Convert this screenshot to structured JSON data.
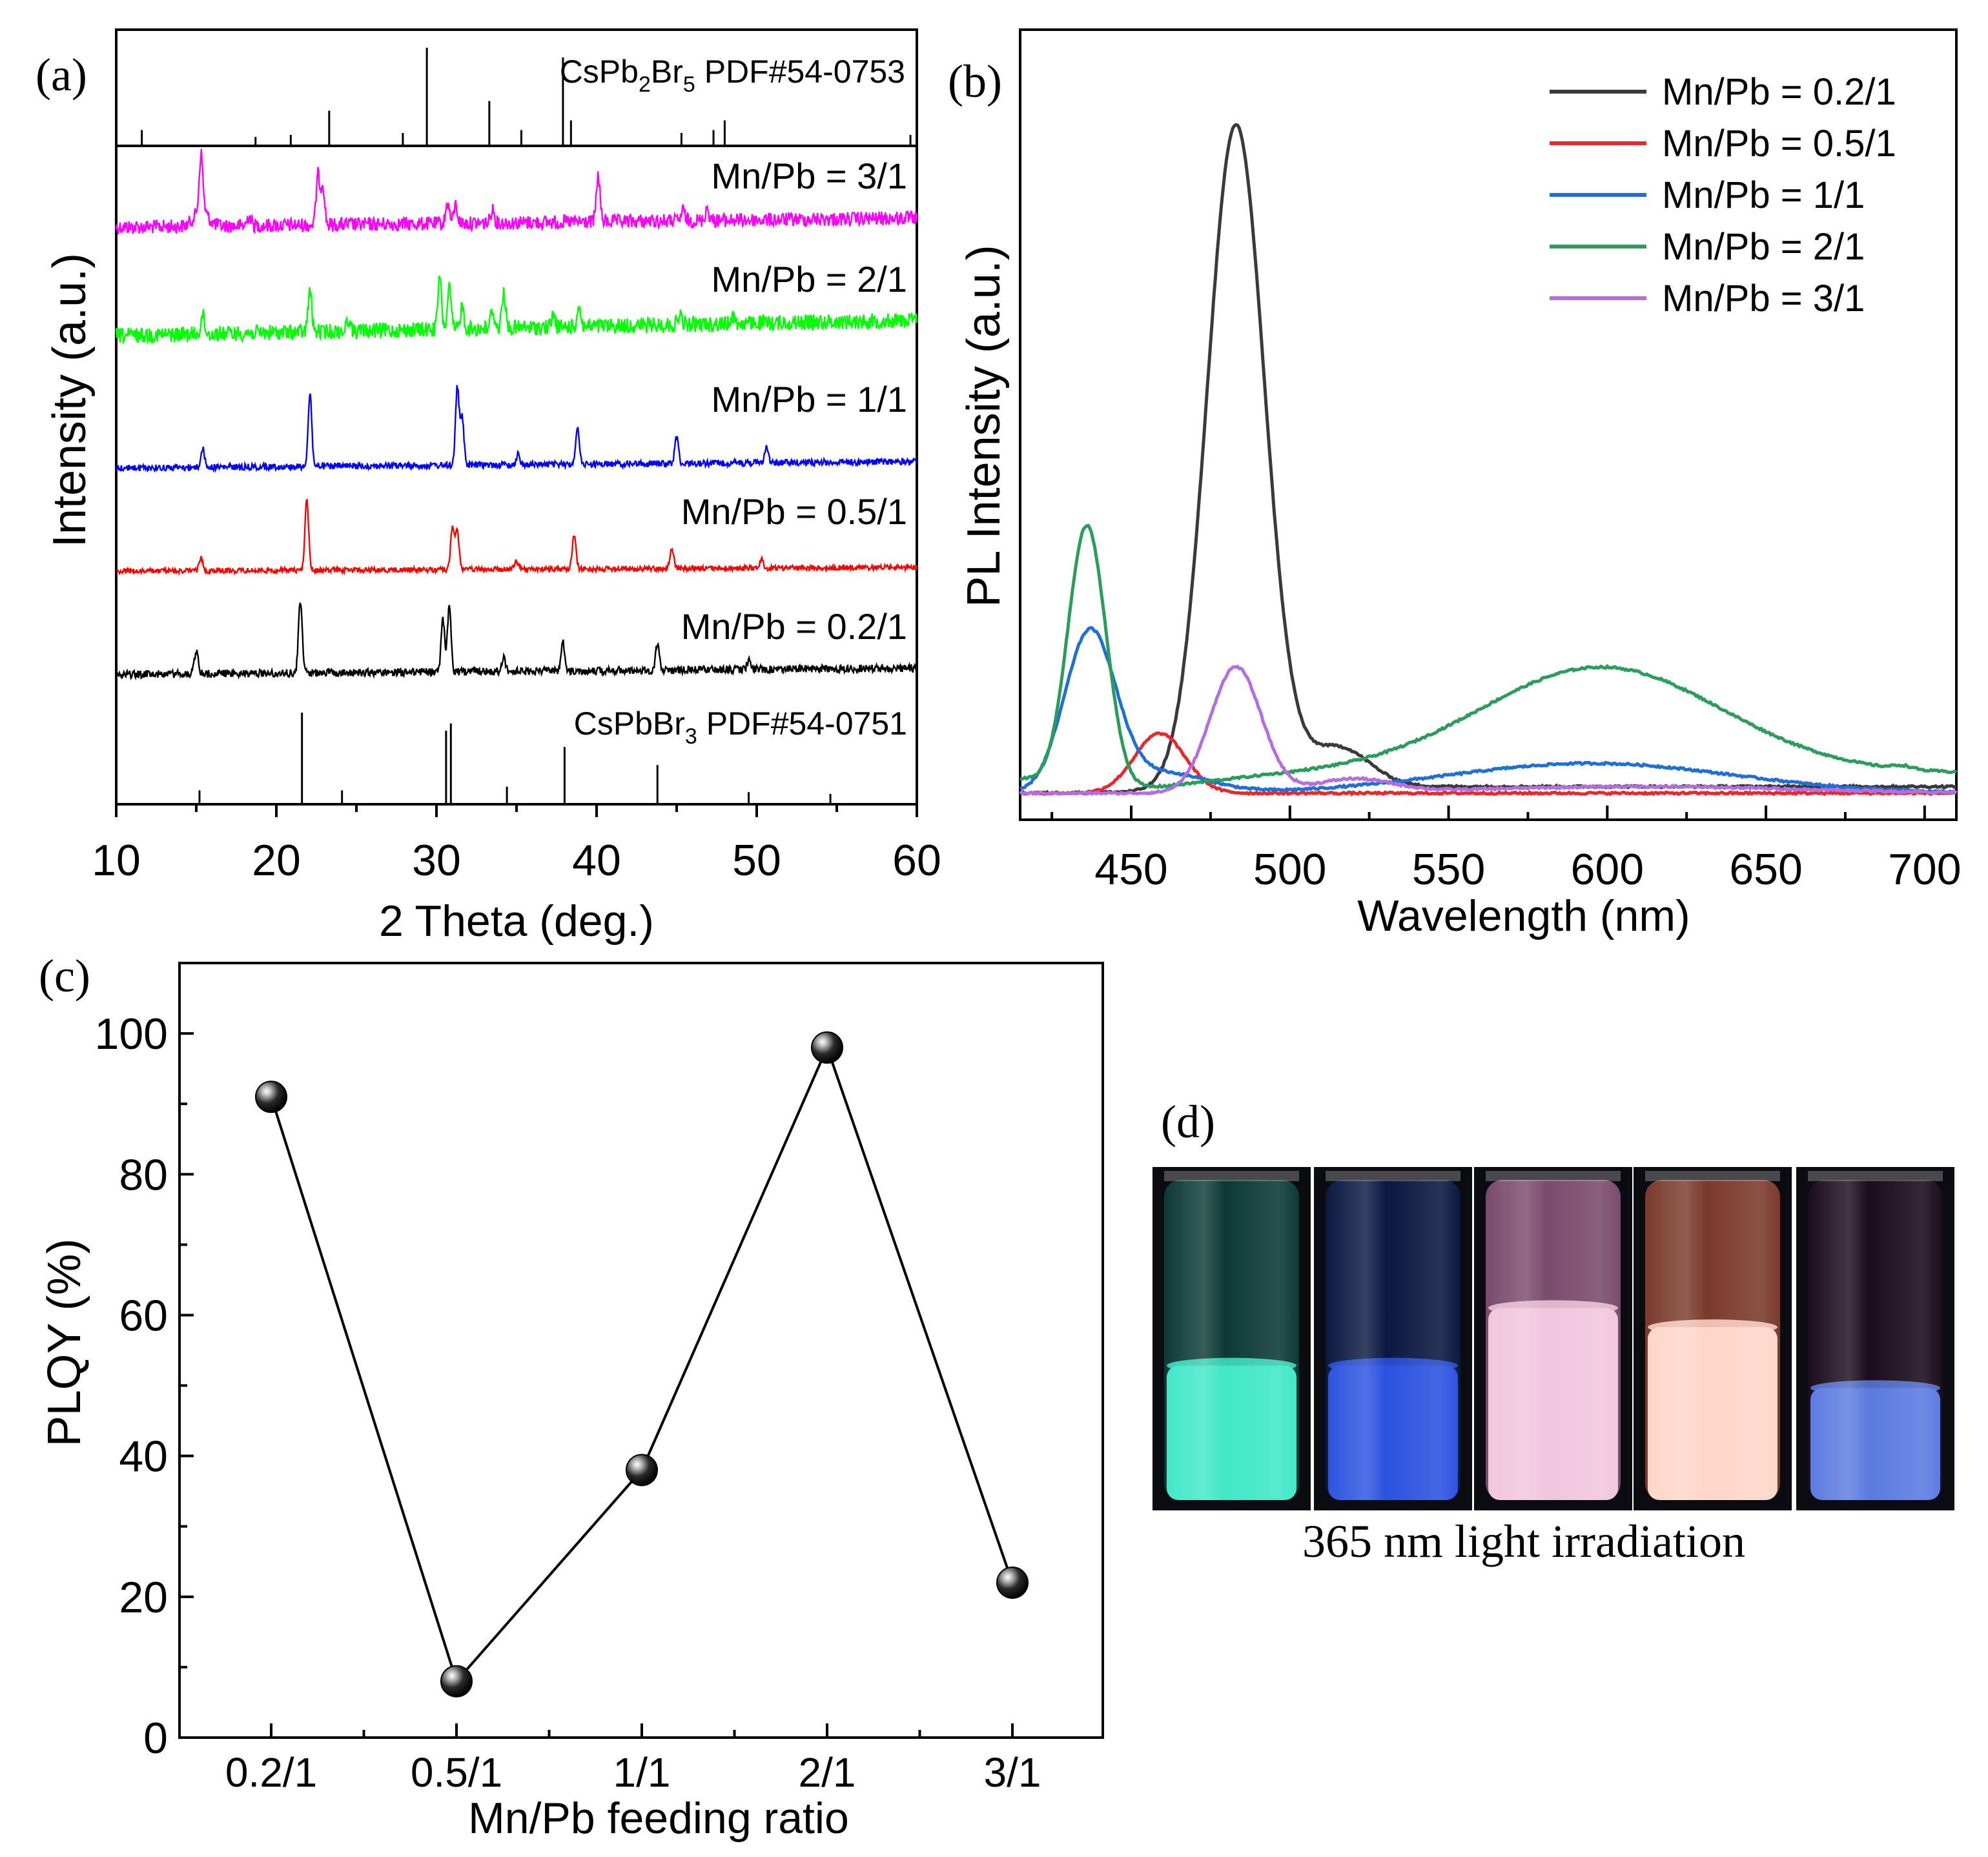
{
  "panel_a": {
    "label": "(a)",
    "ref_top": {
      "formula_main": "CsPb",
      "sub1": "2",
      "mid": "Br",
      "sub2": "5",
      "pdf": " PDF#54-0753"
    },
    "ref_bottom": {
      "formula_main": "CsPbBr",
      "sub1": "3",
      "pdf": " PDF#54-0751"
    },
    "ylabel": "Intensity (a.u.)",
    "xlabel": "2 Theta (deg.)"
  },
  "panel_b": {
    "label": "(b)",
    "ylabel": "PL Intensity (a.u.)",
    "xlabel": "Wavelength (nm)"
  },
  "panel_c": {
    "label": "(c)",
    "ylabel": "PLQY (%)",
    "xlabel": "Mn/Pb feeding ratio"
  },
  "panel_d": {
    "label": "(d)",
    "caption": "365 nm light irradiation",
    "vials": [
      {
        "name": "vial-mn-0.2",
        "liquid": "#3fe8c8",
        "glass": "#0c3a33",
        "level": 0.42
      },
      {
        "name": "vial-mn-0.5",
        "liquid": "#2a52e0",
        "glass": "#0a1840",
        "level": 0.42
      },
      {
        "name": "vial-mn-1",
        "liquid": "#f0c6dc",
        "glass": "#7a4a6c",
        "level": 0.6
      },
      {
        "name": "vial-mn-2",
        "liquid": "#ffd6c8",
        "glass": "#7a3a2c",
        "level": 0.54
      },
      {
        "name": "vial-mn-3",
        "liquid": "#5a7ae0",
        "glass": "#1a0c1a",
        "level": 0.35
      }
    ]
  },
  "chart_data": [
    {
      "id": "a",
      "type": "line",
      "title": "",
      "xlabel": "2 Theta (deg.)",
      "ylabel": "Intensity (a.u.)",
      "xlim": [
        10,
        60
      ],
      "xticks": [
        10,
        20,
        30,
        40,
        50,
        60
      ],
      "grid": false,
      "series": [
        {
          "name": "Mn/Pb = 3/1",
          "color": "#ff00ff",
          "peaks": [
            [
              15.3,
              55
            ],
            [
              18.3,
              10
            ],
            [
              22.6,
              48
            ],
            [
              22.9,
              40
            ],
            [
              30.7,
              20
            ],
            [
              31.2,
              18
            ],
            [
              33.5,
              14
            ],
            [
              40.1,
              45
            ],
            [
              45.4,
              10
            ],
            [
              46.9,
              12
            ]
          ]
        },
        {
          "name": "Mn/Pb = 2/1",
          "color": "#00ff00",
          "peaks": [
            [
              15.4,
              18
            ],
            [
              22.1,
              40
            ],
            [
              24.5,
              12
            ],
            [
              30.2,
              50
            ],
            [
              30.8,
              40
            ],
            [
              31.6,
              22
            ],
            [
              33.5,
              18
            ],
            [
              34.2,
              36
            ],
            [
              37.3,
              12
            ],
            [
              38.9,
              20
            ],
            [
              45.2,
              10
            ],
            [
              48.5,
              8
            ]
          ]
        },
        {
          "name": "Mn/Pb = 1/1",
          "color": "#0000ff",
          "peaks": [
            [
              15.4,
              18
            ],
            [
              22.1,
              70
            ],
            [
              31.3,
              75
            ],
            [
              31.6,
              45
            ],
            [
              35.1,
              10
            ],
            [
              38.8,
              36
            ],
            [
              45.0,
              26
            ],
            [
              50.6,
              16
            ]
          ]
        },
        {
          "name": "Mn/Pb = 0.5/1",
          "color": "#ff0000",
          "peaks": [
            [
              15.3,
              12
            ],
            [
              21.9,
              70
            ],
            [
              31.0,
              40
            ],
            [
              31.3,
              38
            ],
            [
              35.0,
              8
            ],
            [
              38.6,
              33
            ],
            [
              44.7,
              20
            ],
            [
              50.3,
              8
            ]
          ]
        },
        {
          "name": "Mn/Pb = 0.2/1",
          "color": "#000000",
          "peaks": [
            [
              15.0,
              22
            ],
            [
              21.5,
              70
            ],
            [
              30.4,
              50
            ],
            [
              30.8,
              62
            ],
            [
              34.2,
              14
            ],
            [
              37.9,
              28
            ],
            [
              43.8,
              26
            ],
            [
              49.5,
              8
            ]
          ]
        }
      ],
      "reference_top": {
        "name": "CsPb2Br5 PDF#54-0753",
        "sticks": [
          [
            11.6,
            0.15
          ],
          [
            18.7,
            0.08
          ],
          [
            20.9,
            0.1
          ],
          [
            23.3,
            0.35
          ],
          [
            27.9,
            0.12
          ],
          [
            29.4,
            1.0
          ],
          [
            33.3,
            0.45
          ],
          [
            35.3,
            0.15
          ],
          [
            37.9,
            0.9
          ],
          [
            38.4,
            0.25
          ],
          [
            45.3,
            0.12
          ],
          [
            47.3,
            0.15
          ],
          [
            48.0,
            0.25
          ],
          [
            59.6,
            0.1
          ]
        ]
      },
      "reference_bottom": {
        "name": "CsPbBr3 PDF#54-0751",
        "sticks": [
          [
            15.2,
            0.14
          ],
          [
            21.6,
            1.0
          ],
          [
            24.1,
            0.14
          ],
          [
            30.6,
            0.8
          ],
          [
            30.9,
            0.88
          ],
          [
            34.4,
            0.18
          ],
          [
            38.0,
            0.62
          ],
          [
            43.8,
            0.42
          ],
          [
            49.5,
            0.12
          ],
          [
            54.6,
            0.1
          ]
        ]
      }
    },
    {
      "id": "b",
      "type": "line",
      "title": "",
      "xlabel": "Wavelength (nm)",
      "ylabel": "PL Intensity (a.u.)",
      "xlim": [
        415,
        710
      ],
      "ylim": [
        -0.04,
        1.15
      ],
      "xticks": [
        450,
        500,
        550,
        600,
        650,
        700
      ],
      "legend": "top-right",
      "grid": false,
      "series": [
        {
          "name": "Mn/Pb = 0.2/1",
          "color": "#3a3a3a",
          "baseline": 0.01,
          "peaks": [
            [
              483,
              1.0,
              9
            ],
            [
              515,
              0.06,
              10
            ]
          ]
        },
        {
          "name": "Mn/Pb = 0.5/1",
          "color": "#e8282a",
          "baseline": 0.0,
          "peaks": [
            [
              459,
              0.09,
              8
            ]
          ]
        },
        {
          "name": "Mn/Pb = 1/1",
          "color": "#1f6fd8",
          "baseline": 0.0,
          "peaks": [
            [
              437,
              0.24,
              8
            ],
            [
              460,
              0.03,
              14
            ],
            [
              595,
              0.045,
              45
            ]
          ]
        },
        {
          "name": "Mn/Pb = 2/1",
          "color": "#2a9d5a",
          "baseline": 0.03,
          "peaks": [
            [
              436,
              0.4,
              6
            ],
            [
              598,
              0.16,
              38
            ],
            [
              693,
              0.005,
              3
            ]
          ]
        },
        {
          "name": "Mn/Pb = 3/1",
          "color": "#b46ee0",
          "baseline": 0.0,
          "peaks": [
            [
              483,
              0.19,
              8
            ],
            [
              520,
              0.02,
              12
            ],
            [
              610,
              0.01,
              50
            ]
          ]
        }
      ]
    },
    {
      "id": "c",
      "type": "scatter",
      "title": "",
      "xlabel": "Mn/Pb feeding ratio",
      "ylabel": "PLQY (%)",
      "categories": [
        "0.2/1",
        "0.5/1",
        "1/1",
        "2/1",
        "3/1"
      ],
      "values": [
        91,
        8,
        38,
        98,
        22
      ],
      "ylim": [
        0,
        110
      ],
      "yticks": [
        0,
        20,
        40,
        60,
        80,
        100
      ],
      "connected": [
        true,
        true,
        true,
        true,
        false
      ],
      "grid": false
    }
  ]
}
